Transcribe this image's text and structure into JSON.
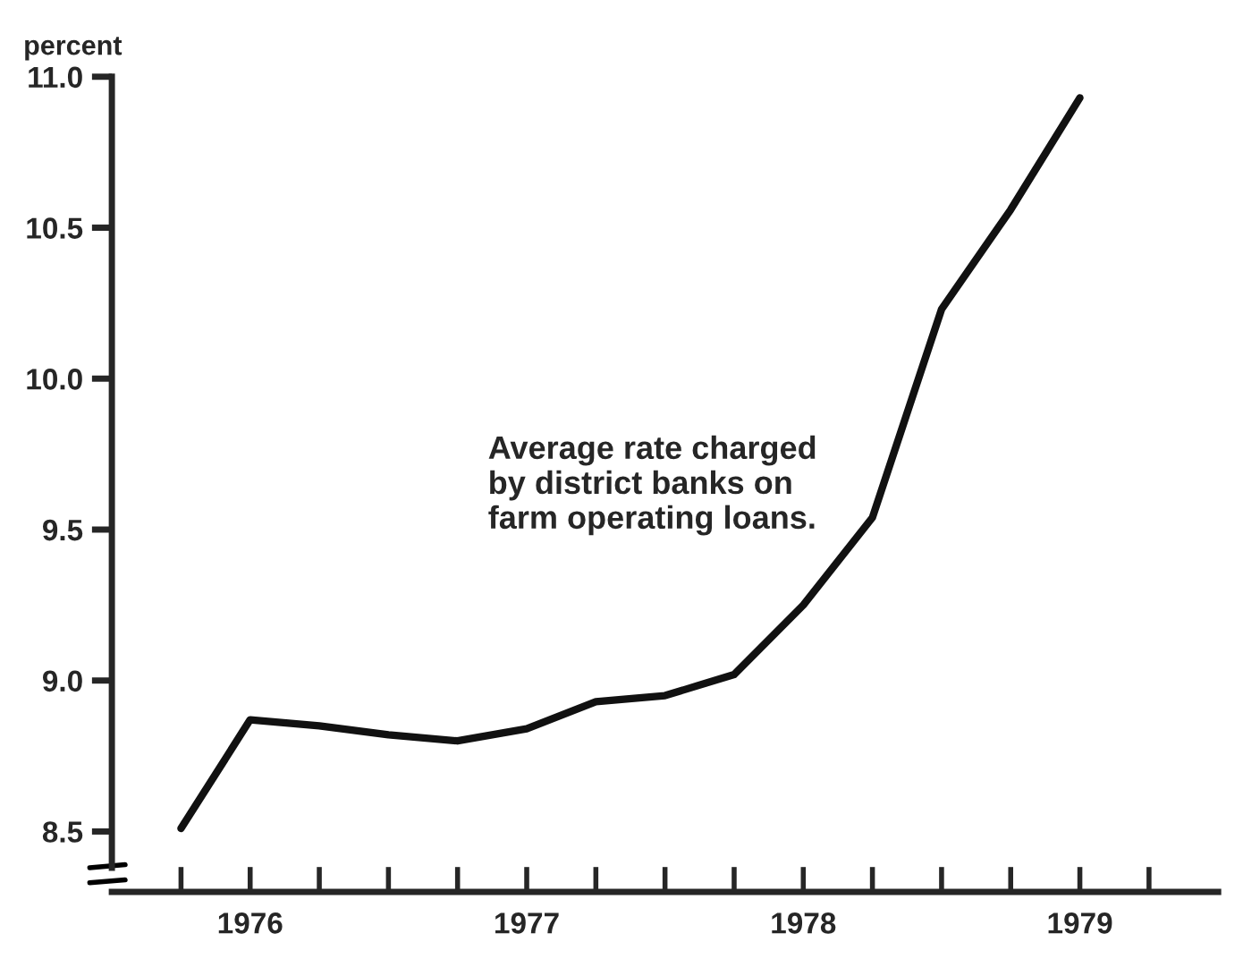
{
  "chart_data": {
    "type": "line",
    "ylabel": "percent",
    "x": [
      1976.25,
      1976.5,
      1976.75,
      1977.0,
      1977.25,
      1977.5,
      1977.75,
      1978.0,
      1978.25,
      1978.5,
      1978.75,
      1979.0,
      1979.25,
      1979.5
    ],
    "series": [
      {
        "color": "#111111",
        "values": [
          8.51,
          8.87,
          8.85,
          8.82,
          8.8,
          8.84,
          8.93,
          8.95,
          9.02,
          9.25,
          9.54,
          10.23,
          10.56,
          10.93
        ]
      }
    ],
    "xlim": [
      1976.0,
      1980.0
    ],
    "xticks": [
      {
        "value": 1976.25,
        "label": null
      },
      {
        "value": 1976.5,
        "label": "1976"
      },
      {
        "value": 1976.75,
        "label": null
      },
      {
        "value": 1977.0,
        "label": null
      },
      {
        "value": 1977.25,
        "label": null
      },
      {
        "value": 1977.5,
        "label": "1977"
      },
      {
        "value": 1977.75,
        "label": null
      },
      {
        "value": 1978.0,
        "label": null
      },
      {
        "value": 1978.25,
        "label": null
      },
      {
        "value": 1978.5,
        "label": "1978"
      },
      {
        "value": 1978.75,
        "label": null
      },
      {
        "value": 1979.0,
        "label": null
      },
      {
        "value": 1979.25,
        "label": null
      },
      {
        "value": 1979.5,
        "label": "1979"
      },
      {
        "value": 1979.75,
        "label": null
      }
    ],
    "ylim": [
      8.3,
      11.0
    ],
    "yticks": [
      {
        "value": 8.5,
        "label": "8.5"
      },
      {
        "value": 9.0,
        "label": "9.0"
      },
      {
        "value": 9.5,
        "label": "9.5"
      },
      {
        "value": 10.0,
        "label": "10.0"
      },
      {
        "value": 10.5,
        "label": "10.5"
      },
      {
        "value": 11.0,
        "label": "11.0"
      }
    ],
    "annotations": [
      "Average rate charged\nby district banks on\nfarm operating loans."
    ],
    "grid": false,
    "legend": false,
    "marker": "none",
    "line_style": "solid"
  }
}
